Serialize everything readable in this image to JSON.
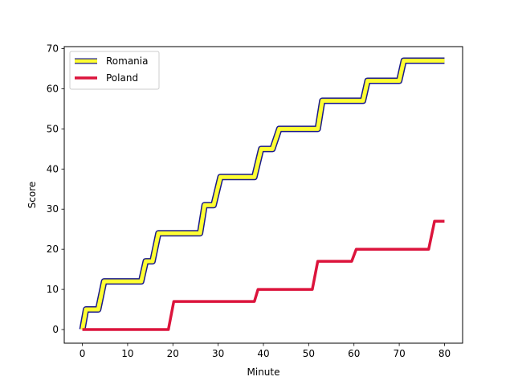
{
  "chart_data": {
    "type": "line",
    "xlabel": "Minute",
    "ylabel": "Score",
    "xlim": [
      -4,
      84
    ],
    "ylim": [
      -3.4,
      70.5
    ],
    "xticks": [
      0,
      10,
      20,
      30,
      40,
      50,
      60,
      70,
      80
    ],
    "yticks": [
      0,
      10,
      20,
      30,
      40,
      50,
      60,
      70
    ],
    "grid": false,
    "legend": "top-left",
    "colors": {
      "romania_fill": "#ffff33",
      "romania_edge": "#1a1a8c",
      "poland": "#dc143c"
    },
    "series": [
      {
        "name": "Romania",
        "style": "yellow-with-navy-outline",
        "x": [
          0,
          0.8,
          3.5,
          4.8,
          13,
          14,
          15.5,
          16.8,
          26,
          27,
          29,
          30.5,
          38,
          39.5,
          42,
          43.5,
          52,
          53,
          62,
          63,
          70,
          71,
          80
        ],
        "y": [
          0,
          5,
          5,
          12,
          12,
          17,
          17,
          24,
          24,
          31,
          31,
          38,
          38,
          45,
          45,
          50,
          50,
          57,
          57,
          62,
          62,
          67,
          67
        ]
      },
      {
        "name": "Poland",
        "style": "solid",
        "x": [
          0,
          19,
          20.2,
          38,
          38.8,
          50.8,
          52,
          59.5,
          60.5,
          76.5,
          77.8,
          80
        ],
        "y": [
          0,
          0,
          7,
          7,
          10,
          10,
          17,
          17,
          20,
          20,
          27,
          27
        ]
      }
    ]
  }
}
